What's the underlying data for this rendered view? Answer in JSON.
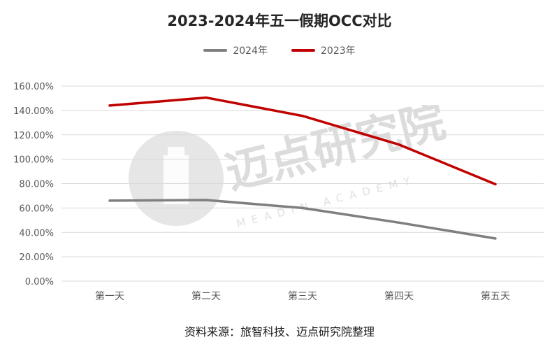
{
  "colors": {
    "series_2024": "#7f7f7f",
    "series_2023": "#c00000",
    "grid": "#d9d9d9",
    "watermark": "#d4d4d4"
  },
  "watermark": {
    "text": "迈点研究院",
    "subtext": "MEADIN ACADEMY"
  },
  "source_note": "资料来源：旅智科技、迈点研究院整理",
  "chart_data": {
    "type": "line",
    "title": "2023-2024年五一假期OCC对比",
    "xlabel": "",
    "ylabel": "",
    "categories": [
      "第一天",
      "第二天",
      "第三天",
      "第四天",
      "第五天"
    ],
    "y_ticks": [
      "0.00%",
      "20.00%",
      "40.00%",
      "60.00%",
      "80.00%",
      "100.00%",
      "120.00%",
      "140.00%",
      "160.00%"
    ],
    "ylim": [
      0,
      160
    ],
    "grid": true,
    "legend_position": "top-center",
    "series": [
      {
        "name": "2024年",
        "color_key": "series_2024",
        "values": [
          66,
          66.5,
          60,
          48,
          35
        ]
      },
      {
        "name": "2023年",
        "color_key": "series_2023",
        "values": [
          144,
          150.5,
          135.5,
          112,
          79.5
        ]
      }
    ]
  }
}
